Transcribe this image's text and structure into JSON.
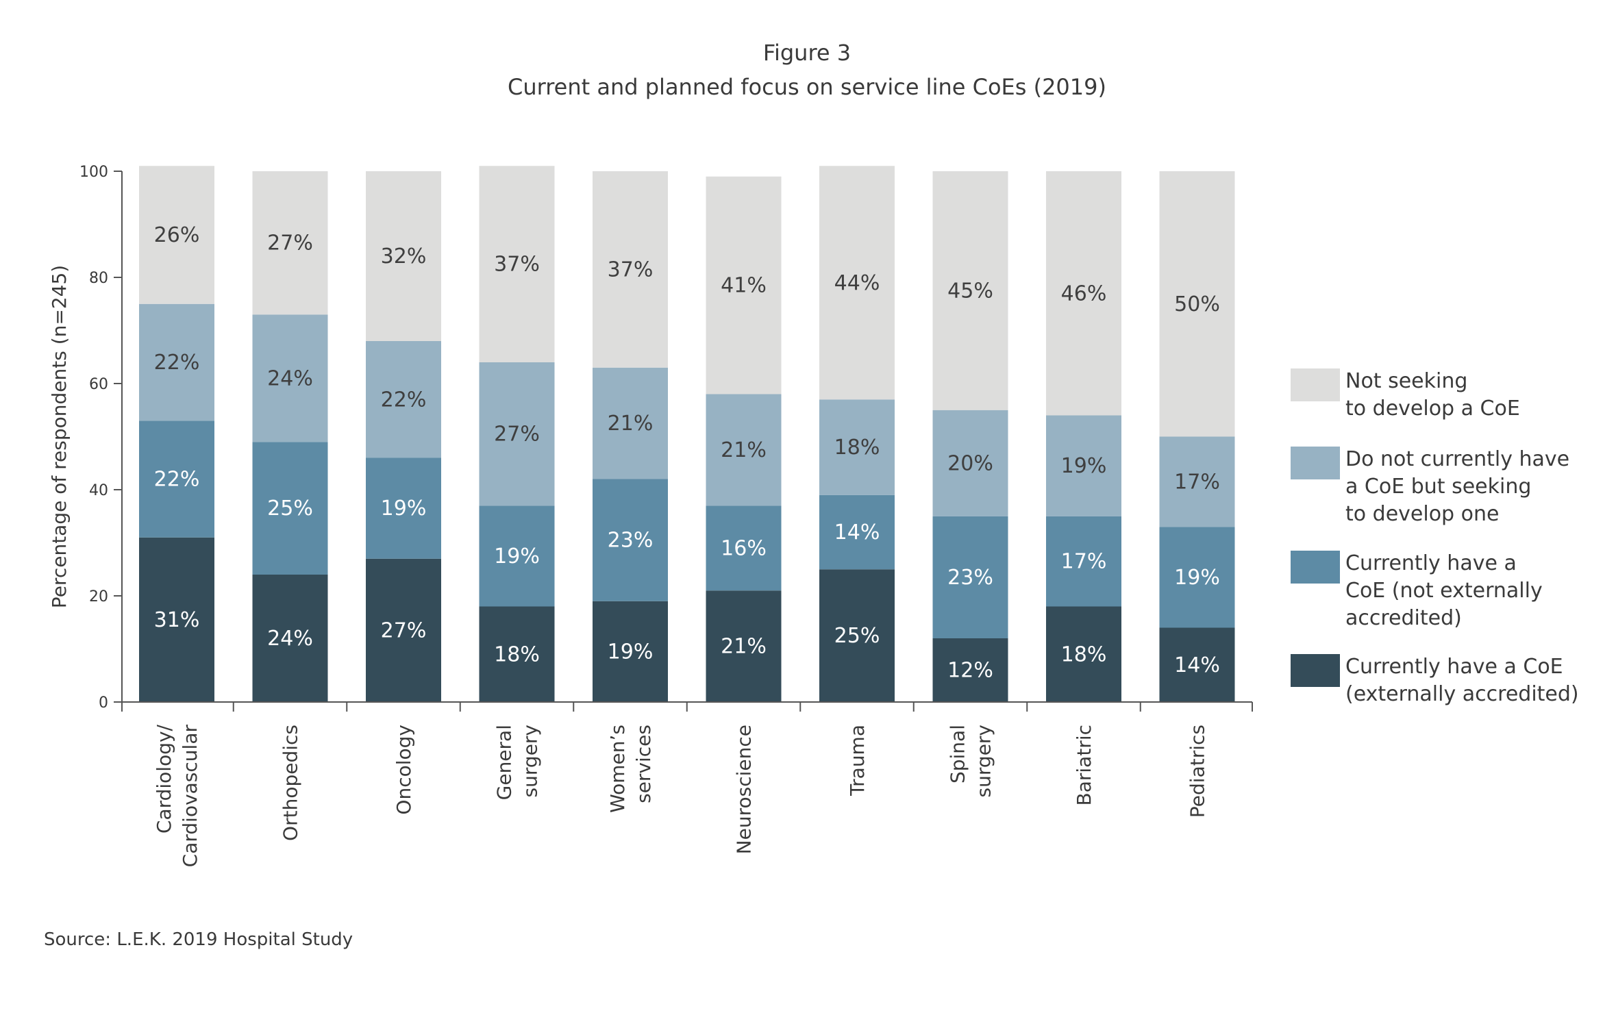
{
  "figure": {
    "label": "Figure 3",
    "title": "Current and planned focus on service line CoEs (2019)"
  },
  "source": "Source:  L.E.K. 2019 Hospital Study",
  "chart_data": {
    "type": "bar",
    "stacked": true,
    "title": "Current and planned focus on service line CoEs (2019)",
    "ylabel": "Percentage of respondents (n=245)",
    "xlabel": "",
    "ylim": [
      0,
      100
    ],
    "yticks": [
      "0",
      "20",
      "40",
      "60",
      "80",
      "100"
    ],
    "grid": false,
    "legend_position": "right",
    "categories": [
      [
        "Cardiology/",
        "Cardiovascular"
      ],
      [
        "Orthopedics"
      ],
      [
        "Oncology"
      ],
      [
        "General",
        "surgery"
      ],
      [
        "Women’s",
        "services"
      ],
      [
        "Neuroscience"
      ],
      [
        "Trauma"
      ],
      [
        "Spinal",
        "surgery"
      ],
      [
        "Bariatric"
      ],
      [
        "Pediatrics"
      ]
    ],
    "series": [
      {
        "name": [
          "Currently have a CoE",
          "(externally accredited)"
        ],
        "color": "#344c59",
        "text_color": "#ffffff",
        "values": [
          31,
          24,
          27,
          18,
          19,
          21,
          25,
          12,
          18,
          14
        ],
        "labels": [
          "31%",
          "24%",
          "27%",
          "18%",
          "19%",
          "21%",
          "25%",
          "12%",
          "18%",
          "14%"
        ]
      },
      {
        "name": [
          "Currently have a",
          "CoE (not externally",
          "accredited)"
        ],
        "color": "#5d8ba5",
        "text_color": "#ffffff",
        "values": [
          22,
          25,
          19,
          19,
          23,
          16,
          14,
          23,
          17,
          19
        ],
        "labels": [
          "22%",
          "25%",
          "19%",
          "19%",
          "23%",
          "16%",
          "14%",
          "23%",
          "17%",
          "19%"
        ]
      },
      {
        "name": [
          "Do not currently have",
          "a CoE but seeking",
          "to develop one"
        ],
        "color": "#97b2c3",
        "text_color": "#3f3f3f",
        "values": [
          22,
          24,
          22,
          27,
          21,
          21,
          18,
          20,
          19,
          17
        ],
        "labels": [
          "22%",
          "24%",
          "22%",
          "27%",
          "21%",
          "21%",
          "18%",
          "20%",
          "19%",
          "17%"
        ]
      },
      {
        "name": [
          "Not seeking",
          "to develop a CoE"
        ],
        "color": "#dddddc",
        "text_color": "#3f3f3f",
        "values": [
          26,
          27,
          32,
          37,
          37,
          41,
          44,
          45,
          46,
          50
        ],
        "labels": [
          "26%",
          "27%",
          "32%",
          "37%",
          "37%",
          "41%",
          "44%",
          "45%",
          "46%",
          "50%"
        ]
      }
    ]
  }
}
